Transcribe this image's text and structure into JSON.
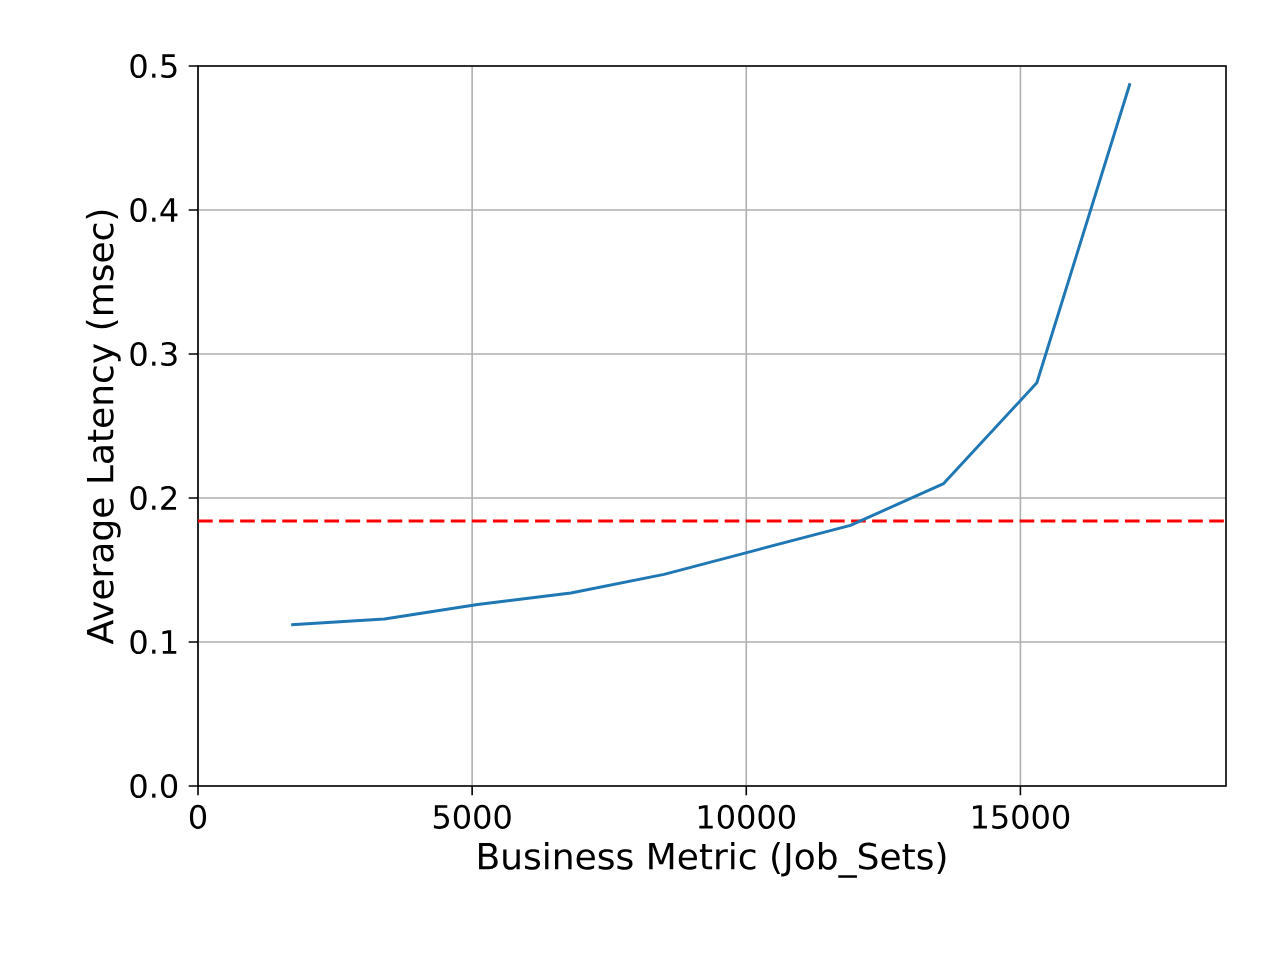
{
  "chart_data": {
    "type": "line",
    "xlabel": "Business Metric (Job_Sets)",
    "ylabel": "Average Latency (msec)",
    "x": [
      1700,
      3400,
      5100,
      6800,
      8500,
      10200,
      11900,
      13600,
      15300,
      17000
    ],
    "series": [
      {
        "color": "#1f77b4",
        "values": [
          0.112,
          0.116,
          0.126,
          0.134,
          0.147,
          0.164,
          0.181,
          0.21,
          0.28,
          0.488
        ]
      }
    ],
    "xlim": [
      0,
      18750
    ],
    "ylim": [
      0,
      0.5
    ],
    "xticks": [
      0,
      5000,
      10000,
      15000
    ],
    "yticks": [
      {
        "value": 0,
        "label": "0.0"
      },
      0.1,
      0.2,
      0.3,
      0.4,
      0.5
    ],
    "ref_lines": [
      {
        "axis": "y",
        "value": 0.184,
        "color": "#ff0000",
        "line_style": "dashed"
      }
    ],
    "grid": true,
    "marker": "none",
    "line_style": "solid"
  }
}
